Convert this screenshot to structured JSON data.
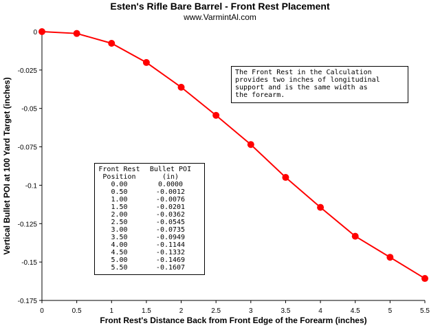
{
  "chart_data": {
    "type": "line",
    "title": "Esten's Rifle Bare Barrel - Front Rest Placement",
    "subtitle": "www.VarmintAl.com",
    "xlabel": "Front Rest's Distance Back from Front Edge of the Forearm (inches)",
    "ylabel": "Vertical Bullet POI at 100 Yard Target (inches)",
    "xlim": [
      0,
      5.5
    ],
    "ylim": [
      -0.175,
      0
    ],
    "x_ticks": [
      0,
      0.5,
      1,
      1.5,
      2,
      2.5,
      3,
      3.5,
      4,
      4.5,
      5,
      5.5
    ],
    "x_tick_labels": [
      "0",
      "0.5",
      "1",
      "1.5",
      "2",
      "2.5",
      "3",
      "3.5",
      "4",
      "4.5",
      "5",
      "5.5"
    ],
    "y_ticks": [
      0,
      -0.025,
      -0.05,
      -0.075,
      -0.1,
      -0.125,
      -0.15,
      -0.175
    ],
    "y_tick_labels": [
      "0",
      "-0.025",
      "-0.05",
      "-0.075",
      "-0.1",
      "-0.125",
      "-0.15",
      "-0.175"
    ],
    "grid": false,
    "series": [
      {
        "color": "#ff0000",
        "x": [
          0,
          0.5,
          1,
          1.5,
          2,
          2.5,
          3,
          3.5,
          4,
          4.5,
          5,
          5.5
        ],
        "values": [
          0.0,
          -0.0012,
          -0.0076,
          -0.0201,
          -0.0362,
          -0.0545,
          -0.0735,
          -0.0949,
          -0.1144,
          -0.1332,
          -0.1469,
          -0.1607
        ]
      }
    ],
    "annotations": {
      "note_lines": [
        "The Front Rest in the Calculation",
        "provides two inches of longitudinal",
        "support and is the same width as",
        "the forearm."
      ],
      "table": {
        "header1": [
          "Front Rest",
          "Bullet POI"
        ],
        "header2": [
          "Position",
          "(in)"
        ],
        "rows": [
          [
            "0.00",
            "0.0000"
          ],
          [
            "0.50",
            "-0.0012"
          ],
          [
            "1.00",
            "-0.0076"
          ],
          [
            "1.50",
            "-0.0201"
          ],
          [
            "2.00",
            "-0.0362"
          ],
          [
            "2.50",
            "-0.0545"
          ],
          [
            "3.00",
            "-0.0735"
          ],
          [
            "3.50",
            "-0.0949"
          ],
          [
            "4.00",
            "-0.1144"
          ],
          [
            "4.50",
            "-0.1332"
          ],
          [
            "5.00",
            "-0.1469"
          ],
          [
            "5.50",
            "-0.1607"
          ]
        ]
      }
    }
  }
}
